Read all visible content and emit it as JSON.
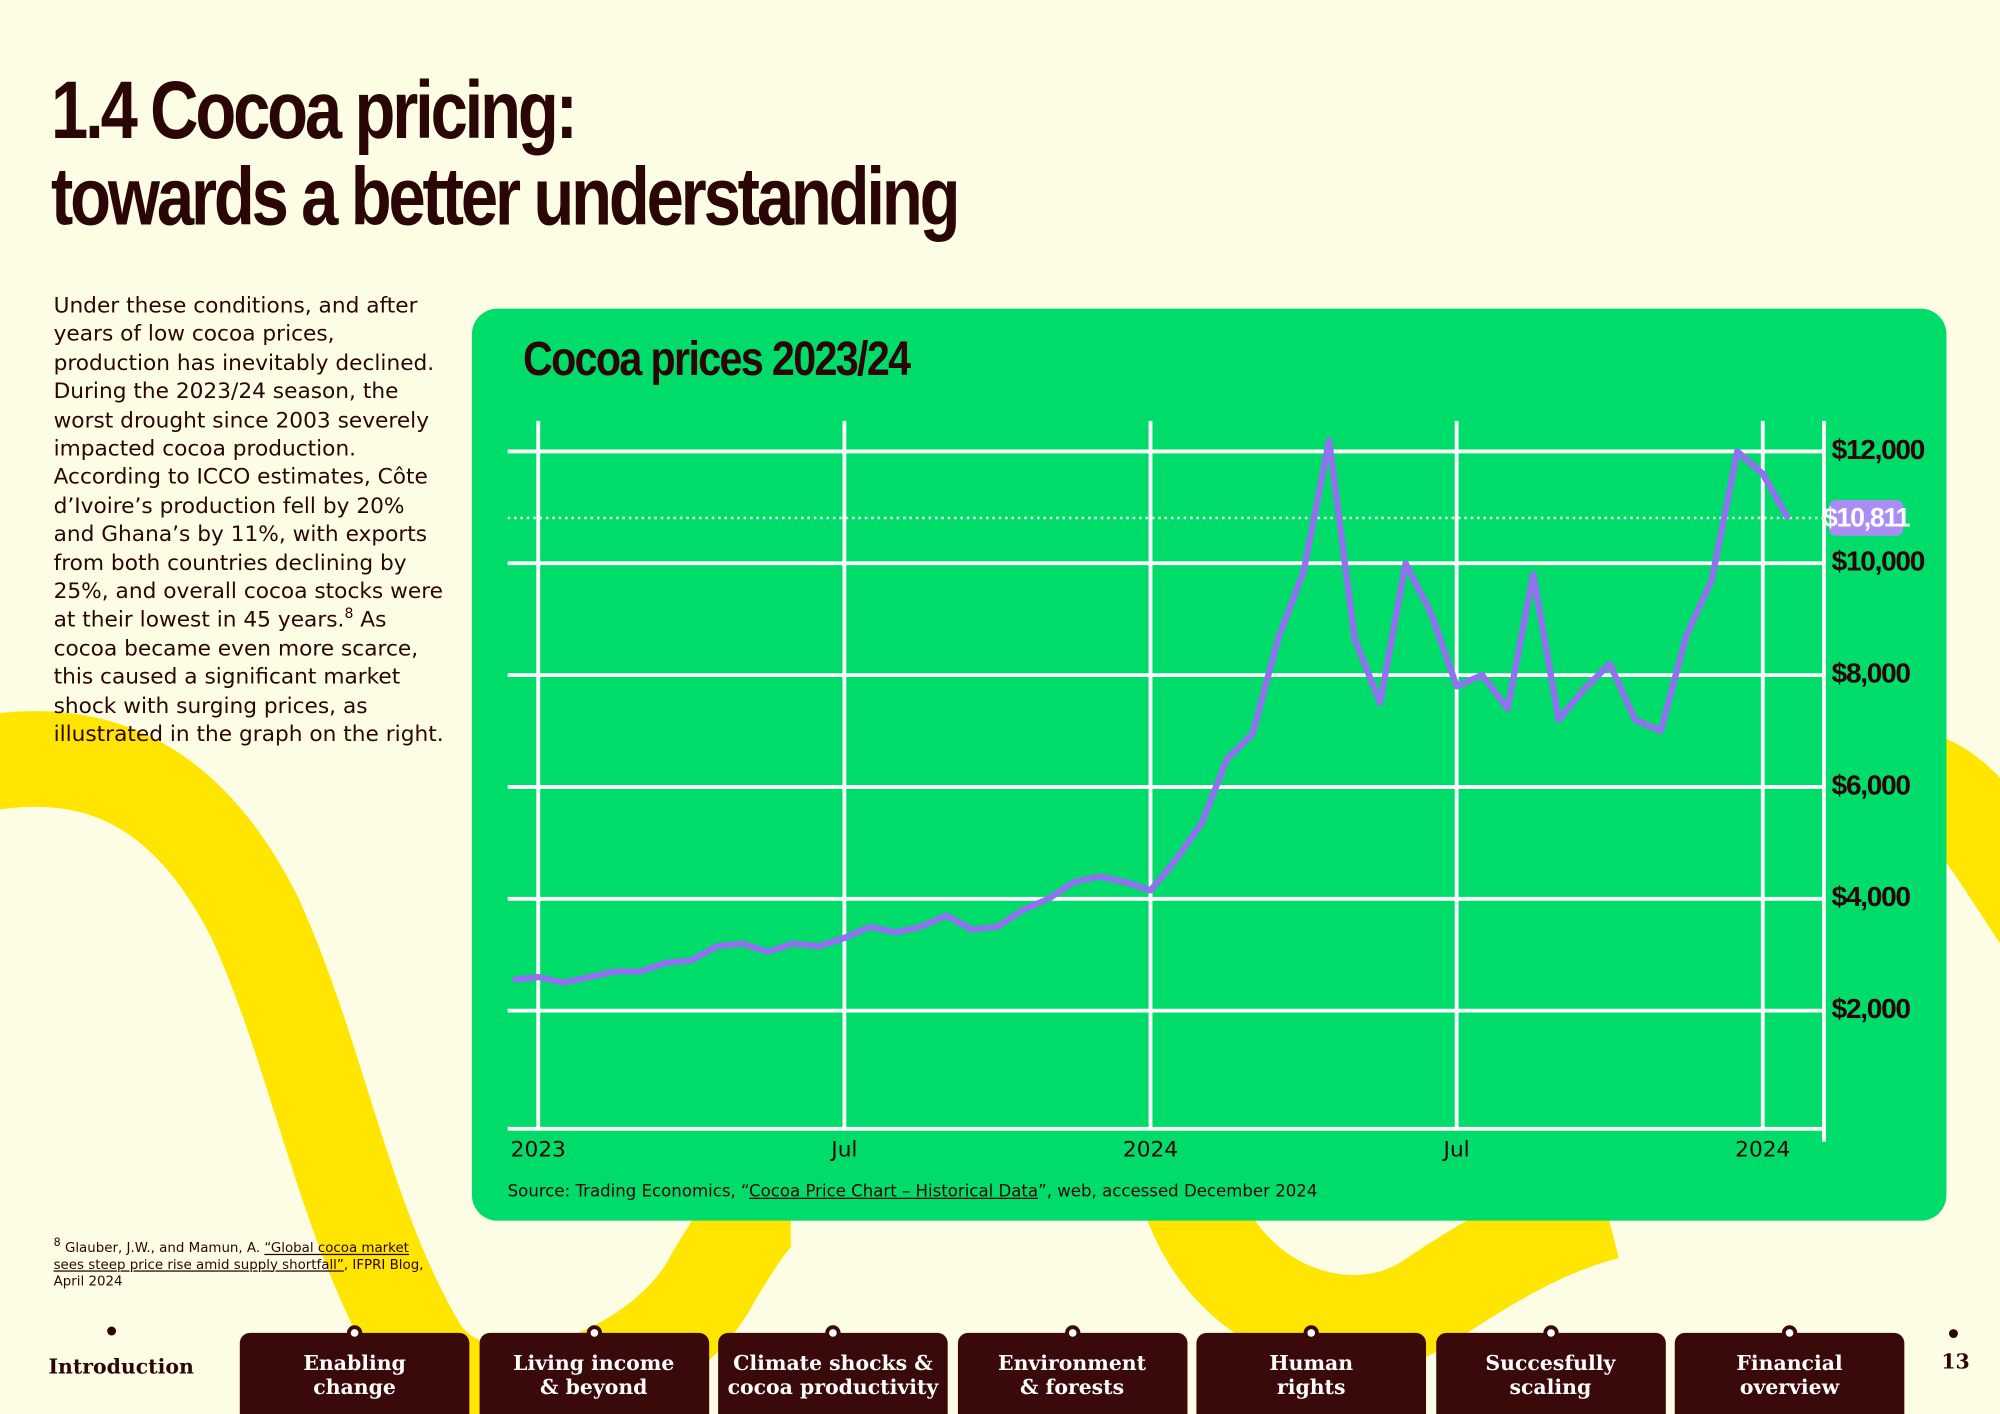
{
  "header": {
    "title": [
      "1.4  Cocoa pricing:",
      "towards a better understanding"
    ]
  },
  "body_text": {
    "before": "Under these conditions, and after years of low cocoa prices, production has inevitably declined. During the 2023/24 season, the worst drought since 2003 severely impacted cocoa production. According to ICCO estimates, Côte d’Ivoire’s production fell by 20% and Ghana’s by 11%, with exports from both countries declining by 25%, and overall cocoa stocks were at their lowest in 45 years.",
    "note_ref": "8",
    "after": " As cocoa became even more scarce, this caused a significant market shock with surging prices, as illustrated in the graph on the right."
  },
  "footnote": {
    "marker": "8",
    "authors": " Glauber, J.W., and Mamun, A. ",
    "link": "“Global cocoa market sees steep price rise amid supply shortfall”",
    "rest": ", IFPRI Blog, April 2024"
  },
  "chart_data": {
    "type": "line",
    "title": "Cocoa prices 2023/24",
    "categories": [
      null,
      "2023",
      null,
      null,
      null,
      null,
      null,
      null,
      null,
      null,
      null,
      null,
      null,
      "Jul",
      null,
      null,
      null,
      null,
      null,
      null,
      null,
      null,
      null,
      null,
      null,
      "2024",
      null,
      null,
      null,
      null,
      null,
      null,
      null,
      null,
      null,
      null,
      null,
      "Jul",
      null,
      null,
      null,
      null,
      null,
      null,
      null,
      null,
      null,
      null,
      null,
      "2024",
      null
    ],
    "series": [
      {
        "name": "Cocoa",
        "color": "#8f72ee",
        "values": [
          2550,
          2600,
          2500,
          2600,
          2700,
          2700,
          2850,
          2900,
          3150,
          3200,
          3050,
          3200,
          3150,
          3300,
          3500,
          3400,
          3500,
          3700,
          3450,
          3500,
          3800,
          4000,
          4300,
          4400,
          4300,
          4150,
          4700,
          5350,
          6500,
          6950,
          8650,
          9850,
          12200,
          8650,
          7500,
          10000,
          9100,
          7800,
          8000,
          7400,
          9800,
          7200,
          7750,
          8200,
          7200,
          7000,
          8700,
          9700,
          12000,
          11600,
          10800
        ]
      }
    ],
    "ylim": [
      0,
      12500
    ],
    "yticks": [
      {
        "value": 2000,
        "label": "$2,000"
      },
      {
        "value": 4000,
        "label": "$4,000"
      },
      {
        "value": 6000,
        "label": "$6,000"
      },
      {
        "value": 8000,
        "label": "$8,000"
      },
      {
        "value": 10000,
        "label": "$10,000"
      },
      {
        "value": 12000,
        "label": "$12,000"
      }
    ],
    "annotation": {
      "value": 10811,
      "label": "$10,811"
    },
    "grid": true,
    "source": {
      "before": "Source: Trading Economics, “",
      "link": "Cocoa Price Chart – Historical Data",
      "after": "”, web, accessed December 2024"
    }
  },
  "nav": {
    "first": "Introduction",
    "tabs": [
      [
        "Enabling",
        "change"
      ],
      [
        "Living income",
        "& beyond"
      ],
      [
        "Climate shocks &",
        "cocoa productivity"
      ],
      [
        "Environment",
        "& forests"
      ],
      [
        "Human",
        "rights"
      ],
      [
        "Succesfully",
        "scaling"
      ],
      [
        "Financial",
        "overview"
      ]
    ]
  },
  "page_number": "13"
}
